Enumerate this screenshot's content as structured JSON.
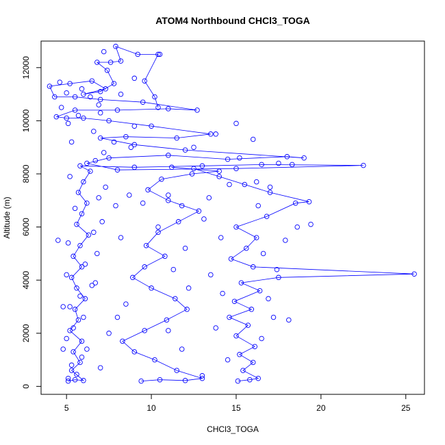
{
  "chart_data": {
    "type": "scatter",
    "title": "ATOM4 Northbound CHCl3_TOGA",
    "xlabel": "CHCl3_TOGA",
    "ylabel": "Altitude (m)",
    "xlim": [
      3.5,
      26.1
    ],
    "ylim": [
      -300,
      13000
    ],
    "xticks": [
      5,
      10,
      15,
      20,
      25
    ],
    "yticks": [
      0,
      2000,
      4000,
      6000,
      8000,
      10000,
      12000
    ],
    "grid": false,
    "legend": "none",
    "color": "#0000ff",
    "series": [
      {
        "name": "",
        "connected": true,
        "points": [
          [
            5.1,
            200
          ],
          [
            5.5,
            250
          ],
          [
            6.0,
            220
          ],
          [
            5.3,
            600
          ],
          [
            5.8,
            900
          ],
          [
            5.4,
            1300
          ],
          [
            5.9,
            1700
          ],
          [
            5.2,
            2100
          ],
          [
            5.7,
            2500
          ],
          [
            5.5,
            2900
          ],
          [
            6.1,
            3300
          ],
          [
            5.6,
            3700
          ],
          [
            5.3,
            4100
          ],
          [
            5.9,
            4500
          ],
          [
            5.4,
            4900
          ],
          [
            5.8,
            5300
          ],
          [
            6.3,
            5700
          ],
          [
            5.6,
            6100
          ],
          [
            5.9,
            6500
          ],
          [
            6.2,
            6900
          ],
          [
            5.7,
            7300
          ],
          [
            6.0,
            7700
          ],
          [
            6.4,
            8100
          ],
          [
            5.8,
            8300
          ],
          [
            9.0,
            8250
          ],
          [
            13.0,
            8300
          ],
          [
            16.5,
            8350
          ],
          [
            22.5,
            8320
          ],
          [
            15.0,
            8200
          ],
          [
            8.0,
            8150
          ],
          [
            6.2,
            8400
          ],
          [
            7.5,
            8600
          ],
          [
            11.0,
            8700
          ],
          [
            14.5,
            8550
          ],
          [
            18.0,
            8650
          ],
          [
            19.0,
            8600
          ],
          [
            12.0,
            8900
          ],
          [
            9.0,
            9100
          ],
          [
            7.0,
            9350
          ],
          [
            8.5,
            9400
          ],
          [
            11.5,
            9350
          ],
          [
            13.5,
            9500
          ],
          [
            10.0,
            9800
          ],
          [
            7.5,
            10000
          ],
          [
            6.0,
            10100
          ],
          [
            5.0,
            10100
          ],
          [
            4.4,
            10150
          ],
          [
            5.5,
            10400
          ],
          [
            8.0,
            10400
          ],
          [
            11.0,
            10450
          ],
          [
            12.7,
            10400
          ],
          [
            9.5,
            10700
          ],
          [
            7.0,
            10800
          ],
          [
            5.5,
            10900
          ],
          [
            4.3,
            10900
          ],
          [
            4.0,
            11300
          ],
          [
            5.2,
            11400
          ],
          [
            6.5,
            11500
          ],
          [
            7.3,
            11200
          ],
          [
            6.0,
            11000
          ],
          [
            7.0,
            11100
          ],
          [
            7.8,
            11400
          ],
          [
            7.4,
            11900
          ],
          [
            6.8,
            12200
          ],
          [
            7.6,
            12200
          ],
          [
            8.2,
            12250
          ],
          [
            7.9,
            12800
          ],
          [
            9.2,
            12500
          ],
          [
            10.4,
            12500
          ],
          [
            9.6,
            11500
          ],
          [
            10.2,
            10900
          ],
          [
            10.4,
            10500
          ]
        ]
      },
      {
        "name": "",
        "connected": true,
        "points": [
          [
            15.1,
            200
          ],
          [
            15.8,
            250
          ],
          [
            16.3,
            300
          ],
          [
            15.4,
            600
          ],
          [
            16.0,
            900
          ],
          [
            15.2,
            1200
          ],
          [
            16.1,
            1500
          ],
          [
            15.0,
            1900
          ],
          [
            15.7,
            2300
          ],
          [
            14.6,
            2600
          ],
          [
            15.9,
            2900
          ],
          [
            14.9,
            3200
          ],
          [
            16.4,
            3600
          ],
          [
            15.3,
            3900
          ],
          [
            17.5,
            4100
          ],
          [
            25.5,
            4230
          ],
          [
            16.0,
            4500
          ],
          [
            14.7,
            4800
          ],
          [
            15.6,
            5200
          ],
          [
            16.2,
            5600
          ],
          [
            15.0,
            6000
          ],
          [
            16.8,
            6400
          ],
          [
            18.5,
            6900
          ],
          [
            19.3,
            6950
          ],
          [
            17.0,
            7300
          ],
          [
            15.5,
            7600
          ],
          [
            14.0,
            7900
          ],
          [
            12.5,
            8200
          ]
        ]
      },
      {
        "name": "",
        "connected": true,
        "points": [
          [
            9.4,
            200
          ],
          [
            10.5,
            250
          ],
          [
            12.0,
            220
          ],
          [
            13.0,
            300
          ],
          [
            11.5,
            600
          ],
          [
            10.2,
            1000
          ],
          [
            9.0,
            1300
          ],
          [
            8.3,
            1700
          ],
          [
            9.6,
            2100
          ],
          [
            10.9,
            2500
          ],
          [
            12.1,
            2900
          ],
          [
            11.4,
            3300
          ],
          [
            10.0,
            3700
          ],
          [
            8.9,
            4100
          ],
          [
            9.6,
            4500
          ],
          [
            10.8,
            4900
          ],
          [
            9.7,
            5300
          ],
          [
            10.4,
            5800
          ],
          [
            11.6,
            6200
          ],
          [
            12.8,
            6600
          ],
          [
            11.0,
            7000
          ],
          [
            9.8,
            7400
          ],
          [
            10.6,
            7800
          ],
          [
            12.4,
            8000
          ],
          [
            14.0,
            8100
          ],
          [
            11.2,
            8250
          ]
        ]
      },
      {
        "name": "",
        "connected": false,
        "points": [
          [
            5.1,
            300
          ],
          [
            5.6,
            450
          ],
          [
            5.3,
            800
          ],
          [
            5.9,
            1100
          ],
          [
            6.2,
            1400
          ],
          [
            5.0,
            1800
          ],
          [
            5.4,
            2200
          ],
          [
            6.0,
            2600
          ],
          [
            5.2,
            3000
          ],
          [
            5.8,
            3400
          ],
          [
            6.5,
            3800
          ],
          [
            5.0,
            4200
          ],
          [
            6.1,
            4600
          ],
          [
            6.8,
            5000
          ],
          [
            5.1,
            5400
          ],
          [
            6.6,
            5800
          ],
          [
            7.1,
            6200
          ],
          [
            5.5,
            6700
          ],
          [
            6.9,
            7100
          ],
          [
            7.3,
            7500
          ],
          [
            5.2,
            7900
          ],
          [
            6.7,
            8500
          ],
          [
            7.2,
            8800
          ],
          [
            5.3,
            9200
          ],
          [
            6.6,
            9600
          ],
          [
            5.1,
            9900
          ],
          [
            4.7,
            10500
          ],
          [
            6.9,
            10600
          ],
          [
            5.9,
            11200
          ],
          [
            4.6,
            11450
          ],
          [
            5.0,
            11050
          ],
          [
            6.4,
            10900
          ],
          [
            7.0,
            10300
          ],
          [
            5.7,
            10200
          ],
          [
            7.8,
            9200
          ],
          [
            8.8,
            9000
          ],
          [
            4.5,
            5500
          ],
          [
            4.8,
            3000
          ],
          [
            7.5,
            2000
          ],
          [
            7.0,
            700
          ],
          [
            4.8,
            1400
          ],
          [
            6.7,
            3900
          ],
          [
            13.5,
            4200
          ],
          [
            14.2,
            3500
          ],
          [
            13.8,
            2200
          ],
          [
            14.5,
            1000
          ],
          [
            13.0,
            400
          ],
          [
            16.5,
            1800
          ],
          [
            17.2,
            2600
          ],
          [
            16.9,
            3300
          ],
          [
            18.1,
            2500
          ],
          [
            17.4,
            4400
          ],
          [
            16.6,
            5000
          ],
          [
            17.9,
            5500
          ],
          [
            18.6,
            6000
          ],
          [
            19.4,
            6100
          ],
          [
            16.3,
            6800
          ],
          [
            17.0,
            7500
          ],
          [
            15.2,
            8600
          ],
          [
            12.5,
            9000
          ],
          [
            13.8,
            9500
          ],
          [
            11.0,
            7200
          ],
          [
            12.0,
            5200
          ],
          [
            11.3,
            4400
          ],
          [
            12.2,
            3700
          ],
          [
            11.8,
            1400
          ],
          [
            11.0,
            2100
          ],
          [
            8.5,
            3100
          ],
          [
            8.0,
            2600
          ],
          [
            8.2,
            5600
          ],
          [
            7.9,
            6800
          ],
          [
            8.7,
            7200
          ],
          [
            9.5,
            6900
          ],
          [
            10.4,
            6000
          ],
          [
            11.8,
            6800
          ],
          [
            13.1,
            6300
          ],
          [
            14.1,
            5600
          ],
          [
            13.4,
            7100
          ],
          [
            14.6,
            7600
          ],
          [
            16.2,
            7700
          ],
          [
            17.5,
            8400
          ],
          [
            18.3,
            8350
          ],
          [
            16.0,
            9300
          ],
          [
            15.0,
            9900
          ],
          [
            9.0,
            9800
          ],
          [
            8.2,
            11000
          ],
          [
            9.0,
            11600
          ],
          [
            10.5,
            12500
          ],
          [
            7.2,
            12600
          ]
        ]
      }
    ]
  }
}
